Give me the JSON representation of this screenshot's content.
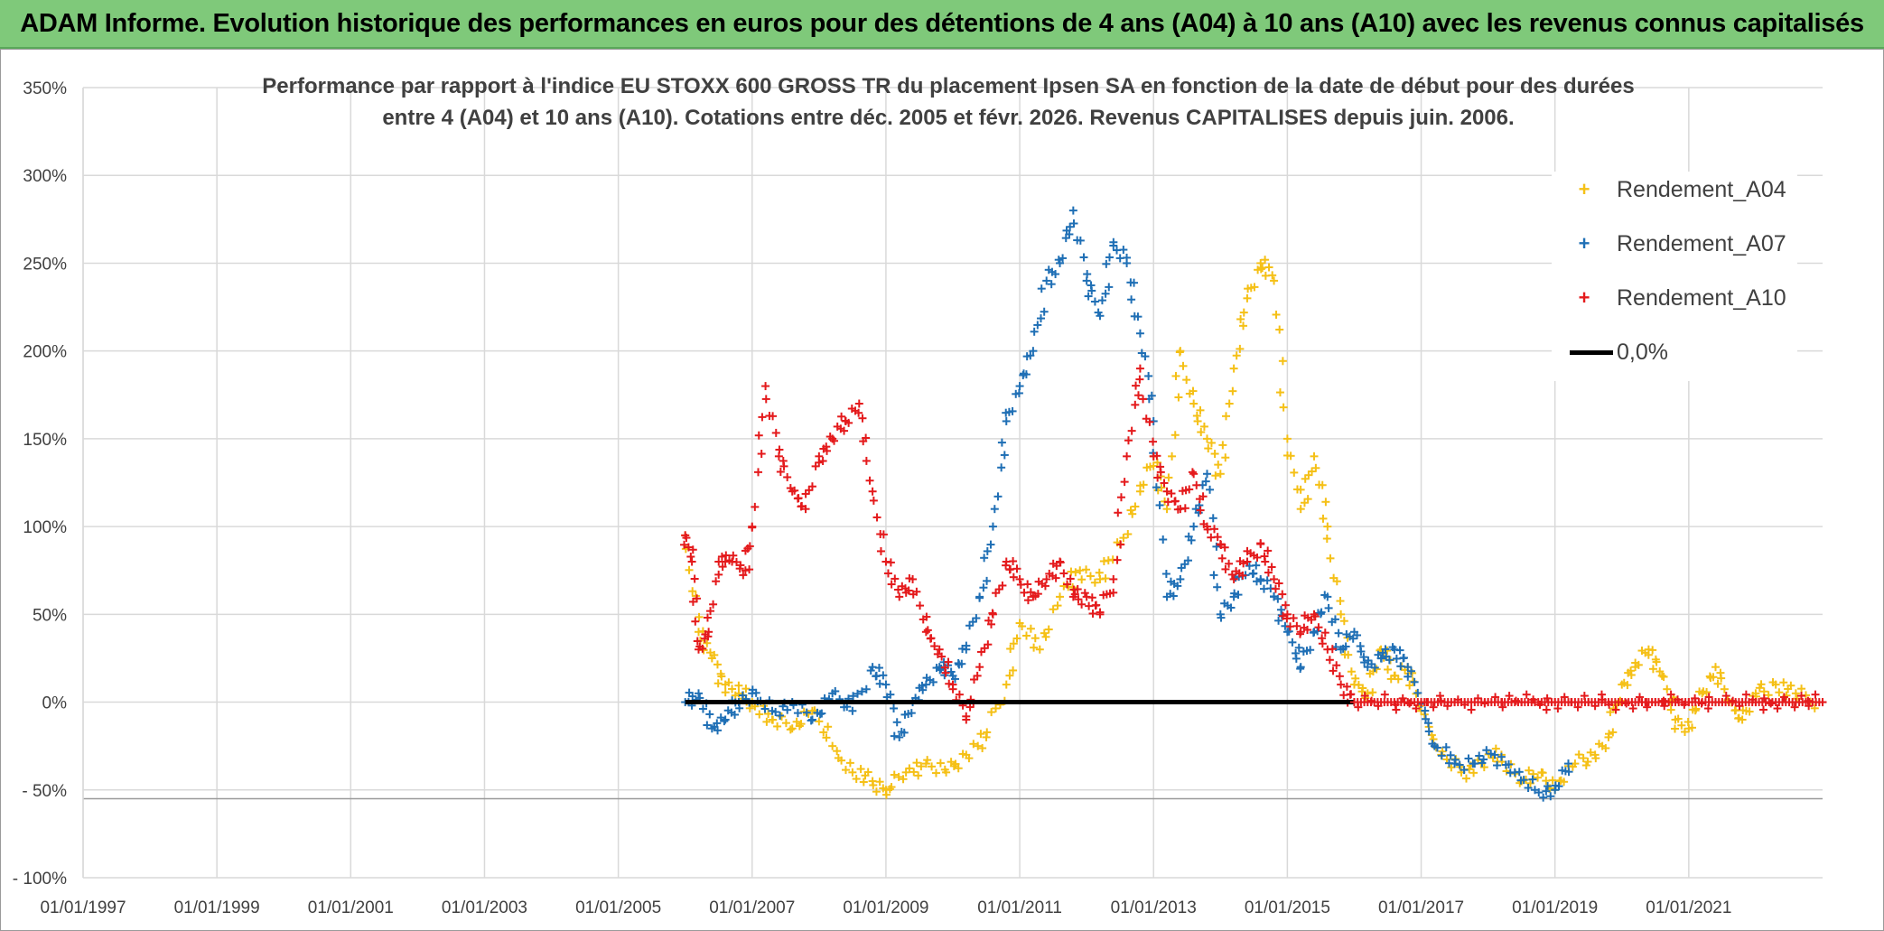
{
  "header": {
    "banner": "ADAM Informe. Evolution historique des performances en euros pour des détentions de 4 ans (A04) à 10 ans (A10) avec les revenus connus capitalisés"
  },
  "chart_data": {
    "type": "scatter",
    "title": "Performance par rapport à l'indice EU STOXX 600 GROSS TR  du placement Ipsen SA en fonction de la date de début pour des durées entre 4 (A04) et 10 ans (A10). Cotations entre déc. 2005 et févr. 2026. Revenus CAPITALISES depuis juin. 2006.",
    "title_lines": [
      "Performance par rapport à l'indice EU STOXX 600 GROSS TR  du placement Ipsen SA en fonction de la date de début pour des durées",
      "entre 4 (A04) et 10 ans (A10). Cotations entre déc. 2005 et févr. 2026. Revenus CAPITALISES depuis juin. 2006."
    ],
    "xlabel": "",
    "ylabel": "",
    "x_range": [
      1997.0,
      2023.0
    ],
    "ylim": [
      -100,
      350
    ],
    "y_ticks": [
      -100,
      -50,
      0,
      50,
      100,
      150,
      200,
      250,
      300,
      350
    ],
    "y_tick_labels": [
      "- 100%",
      "- 50%",
      "0%",
      "50%",
      "100%",
      "150%",
      "200%",
      "250%",
      "300%",
      "350%"
    ],
    "x_ticks": [
      1997,
      1999,
      2001,
      2003,
      2005,
      2007,
      2009,
      2011,
      2013,
      2015,
      2017,
      2019,
      2021
    ],
    "x_tick_labels": [
      "01/01/1997",
      "01/01/1999",
      "01/01/2001",
      "01/01/2003",
      "01/01/2005",
      "01/01/2007",
      "01/01/2009",
      "01/01/2011",
      "01/01/2013",
      "01/01/2015",
      "01/01/2017",
      "01/01/2019",
      "01/01/2021"
    ],
    "legend_position": "top-right",
    "series": [
      {
        "name": "Rendement_A04",
        "color": "#f5c016",
        "marker": "+",
        "x": [
          2006.0,
          2006.2,
          2006.4,
          2006.6,
          2006.8,
          2007.0,
          2007.3,
          2007.6,
          2007.9,
          2008.2,
          2008.5,
          2008.8,
          2009.0,
          2009.3,
          2009.6,
          2009.9,
          2010.2,
          2010.5,
          2010.8,
          2011.0,
          2011.3,
          2011.6,
          2011.9,
          2012.2,
          2012.5,
          2012.8,
          2013.0,
          2013.2,
          2013.4,
          2013.6,
          2013.8,
          2014.0,
          2014.2,
          2014.4,
          2014.6,
          2014.8,
          2015.0,
          2015.2,
          2015.4,
          2015.6,
          2015.8,
          2016.0,
          2016.2,
          2016.4,
          2016.6,
          2016.8,
          2017.0,
          2017.3,
          2017.6,
          2017.9,
          2018.2,
          2018.5,
          2018.8,
          2019.0,
          2019.3,
          2019.6,
          2019.8,
          2020.0,
          2020.2,
          2020.4,
          2020.6,
          2020.8,
          2021.0,
          2021.2,
          2021.4,
          2021.6,
          2021.8,
          2022.0,
          2022.3,
          2022.6,
          2022.9
        ],
        "y": [
          95,
          40,
          25,
          10,
          5,
          0,
          -10,
          -15,
          -5,
          -25,
          -40,
          -45,
          -50,
          -40,
          -35,
          -40,
          -30,
          -20,
          10,
          45,
          30,
          60,
          75,
          70,
          90,
          120,
          140,
          110,
          200,
          170,
          150,
          130,
          190,
          230,
          250,
          240,
          150,
          110,
          140,
          100,
          50,
          10,
          5,
          30,
          15,
          20,
          -5,
          -30,
          -40,
          -35,
          -30,
          -45,
          -40,
          -50,
          -35,
          -30,
          -20,
          10,
          20,
          30,
          15,
          -10,
          -15,
          5,
          20,
          0,
          -10,
          5,
          10,
          5,
          0
        ]
      },
      {
        "name": "Rendement_A07",
        "color": "#1f6fb5",
        "marker": "+",
        "x": [
          2006.0,
          2006.2,
          2006.4,
          2006.6,
          2006.8,
          2007.0,
          2007.3,
          2007.6,
          2007.9,
          2008.2,
          2008.5,
          2008.8,
          2009.0,
          2009.2,
          2009.4,
          2009.6,
          2009.8,
          2010.0,
          2010.2,
          2010.4,
          2010.6,
          2010.8,
          2011.0,
          2011.2,
          2011.4,
          2011.6,
          2011.8,
          2012.0,
          2012.2,
          2012.4,
          2012.6,
          2012.8,
          2013.0,
          2013.2,
          2013.4,
          2013.6,
          2013.8,
          2014.0,
          2014.2,
          2014.4,
          2014.6,
          2014.8,
          2015.0,
          2015.2,
          2015.4,
          2015.6,
          2015.8,
          2016.0,
          2016.2,
          2016.4,
          2016.6,
          2016.8,
          2017.0,
          2017.2,
          2017.5,
          2017.8,
          2018.1,
          2018.4,
          2018.7,
          2019.0,
          2019.2
        ],
        "y": [
          0,
          5,
          -15,
          -10,
          0,
          5,
          -5,
          0,
          -10,
          5,
          -5,
          20,
          10,
          -20,
          0,
          10,
          20,
          15,
          30,
          60,
          100,
          160,
          180,
          200,
          240,
          250,
          280,
          240,
          220,
          260,
          250,
          210,
          160,
          60,
          70,
          100,
          130,
          50,
          60,
          80,
          70,
          60,
          40,
          20,
          40,
          60,
          30,
          40,
          20,
          25,
          30,
          20,
          0,
          -25,
          -35,
          -35,
          -30,
          -40,
          -50,
          -50,
          -35
        ]
      },
      {
        "name": "Rendement_A10",
        "color": "#e41a1c",
        "marker": "+",
        "x": [
          2006.0,
          2006.1,
          2006.2,
          2006.35,
          2006.5,
          2006.7,
          2006.9,
          2007.0,
          2007.2,
          2007.4,
          2007.6,
          2007.8,
          2008.0,
          2008.2,
          2008.4,
          2008.6,
          2008.8,
          2009.0,
          2009.2,
          2009.4,
          2009.6,
          2009.8,
          2010.0,
          2010.2,
          2010.4,
          2010.6,
          2010.8,
          2011.0,
          2011.2,
          2011.4,
          2011.6,
          2011.8,
          2012.0,
          2012.2,
          2012.4,
          2012.6,
          2012.8,
          2013.0,
          2013.2,
          2013.4,
          2013.6,
          2013.8,
          2014.0,
          2014.2,
          2014.4,
          2014.6,
          2014.8,
          2015.0,
          2015.2,
          2015.4,
          2015.6,
          2015.8,
          2016.0,
          2016.5,
          2017.0,
          2017.5,
          2018.0,
          2018.5,
          2019.0,
          2019.5,
          2020.0,
          2020.5,
          2021.0,
          2021.5,
          2022.0,
          2022.5,
          2023.0
        ],
        "y": [
          95,
          80,
          30,
          40,
          80,
          80,
          75,
          100,
          180,
          140,
          120,
          110,
          140,
          150,
          160,
          170,
          120,
          80,
          60,
          70,
          40,
          30,
          10,
          -10,
          20,
          50,
          80,
          70,
          60,
          70,
          80,
          60,
          60,
          50,
          70,
          140,
          190,
          140,
          120,
          110,
          130,
          100,
          90,
          70,
          80,
          90,
          70,
          50,
          40,
          50,
          30,
          10,
          0,
          0,
          0,
          0,
          0,
          0,
          0,
          0,
          0,
          0,
          0,
          0,
          0,
          0,
          0
        ]
      },
      {
        "name": "0,0%",
        "color": "#000000",
        "marker": "line",
        "x": [
          2006.0,
          2016.0
        ],
        "y": [
          0,
          0
        ]
      }
    ]
  }
}
